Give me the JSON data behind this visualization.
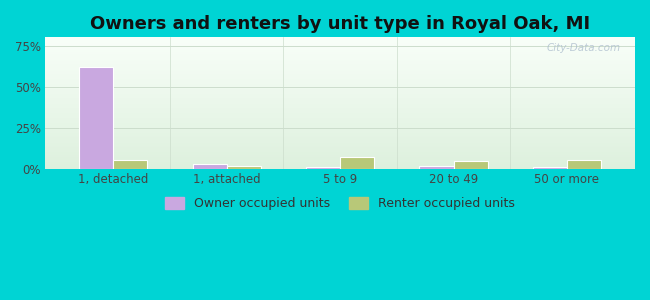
{
  "title": "Owners and renters by unit type in Royal Oak, MI",
  "categories": [
    "1, detached",
    "1, attached",
    "5 to 9",
    "20 to 49",
    "50 or more"
  ],
  "owner_values": [
    62,
    3.0,
    1.2,
    1.5,
    1.2
  ],
  "renter_values": [
    5.5,
    2.0,
    7.5,
    4.5,
    5.5
  ],
  "owner_color": "#c9a8e0",
  "renter_color": "#b8c878",
  "bar_edge_color": "#ffffff",
  "yticks": [
    0,
    25,
    50,
    75
  ],
  "ylim": [
    0,
    80
  ],
  "background_outer": "#00d4d4",
  "background_inner_top": "#f8fef8",
  "background_inner_bottom": "#ddf0dd",
  "title_fontsize": 13,
  "tick_fontsize": 8.5,
  "legend_fontsize": 9,
  "bar_width": 0.3,
  "watermark": "City-Data.com"
}
